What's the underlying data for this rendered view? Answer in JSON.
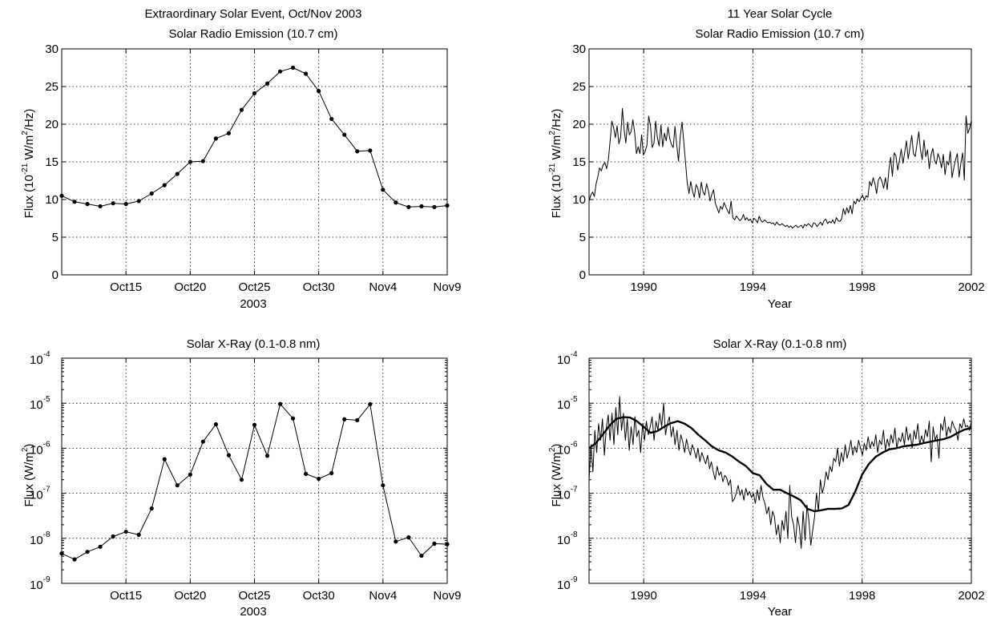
{
  "colors": {
    "background": "#ffffff",
    "ink": "#000000"
  },
  "chart_data": [
    {
      "id": "radio_event",
      "type": "line",
      "title": "Extraordinary Solar Event, Oct/Nov 2003",
      "subtitle": "Solar Radio Emission (10.7 cm)",
      "xlabel": "2003",
      "ylabel": "Flux (10^-21 W/m^2/Hz)",
      "ylabel_parts": {
        "pre": "Flux (10",
        "sup1": "-21",
        "mid": " W/m",
        "sup2": "2",
        "post": "/Hz)"
      },
      "x_tick_labels": [
        "Oct15",
        "Oct20",
        "Oct25",
        "Oct30",
        "Nov4",
        "Nov9"
      ],
      "y_tick_labels": [
        "0",
        "5",
        "10",
        "15",
        "20",
        "25",
        "30"
      ],
      "xlim": [
        10,
        40
      ],
      "ylim": [
        0,
        30
      ],
      "grid": true,
      "markers": true,
      "x": [
        10,
        11,
        12,
        13,
        14,
        15,
        16,
        17,
        18,
        19,
        20,
        21,
        22,
        23,
        24,
        25,
        26,
        27,
        28,
        29,
        30,
        31,
        32,
        33,
        34,
        35,
        36,
        37,
        38,
        39,
        40
      ],
      "values": [
        10.5,
        9.7,
        9.4,
        9.1,
        9.5,
        9.4,
        9.8,
        10.8,
        11.9,
        13.4,
        15.0,
        15.1,
        18.1,
        18.8,
        21.9,
        24.1,
        25.4,
        27.0,
        27.5,
        26.7,
        24.4,
        20.7,
        18.6,
        16.4,
        16.5,
        11.3,
        9.6,
        9.0,
        9.1,
        9.0,
        9.2
      ]
    },
    {
      "id": "radio_cycle",
      "type": "line",
      "title": "11 Year Solar Cycle",
      "subtitle": "Solar Radio Emission (10.7 cm)",
      "xlabel": "Year",
      "ylabel": "Flux (10^-21 W/m^2/Hz)",
      "ylabel_parts": {
        "pre": "Flux (10",
        "sup1": "-21",
        "mid": " W/m",
        "sup2": "2",
        "post": "/Hz)"
      },
      "x_tick_labels": [
        "1990",
        "1994",
        "1998",
        "2002"
      ],
      "y_tick_labels": [
        "0",
        "5",
        "10",
        "15",
        "20",
        "25",
        "30"
      ],
      "xlim": [
        1988,
        2002
      ],
      "ylim": [
        0,
        30
      ],
      "grid": true,
      "markers": false,
      "x_start": 1988.0,
      "x_step": 0.0833,
      "values": [
        9.8,
        10.6,
        11.0,
        10.4,
        12.1,
        13.0,
        14.2,
        13.8,
        14.6,
        14.9,
        14.1,
        15.3,
        17.8,
        20.4,
        19.6,
        18.2,
        19.8,
        17.4,
        18.3,
        22.1,
        19.2,
        17.5,
        20.3,
        18.6,
        19.0,
        20.6,
        18.9,
        16.1,
        17.0,
        16.1,
        18.6,
        15.9,
        16.4,
        17.2,
        21.1,
        19.8,
        16.9,
        17.5,
        20.4,
        18.2,
        17.1,
        19.9,
        17.0,
        18.8,
        17.8,
        19.6,
        18.1,
        17.3,
        16.9,
        19.7,
        17.2,
        15.1,
        18.4,
        20.3,
        17.6,
        15.0,
        12.2,
        10.8,
        12.4,
        11.1,
        10.3,
        12.0,
        11.5,
        10.2,
        12.3,
        11.0,
        10.6,
        12.1,
        11.2,
        9.8,
        10.7,
        11.3,
        9.5,
        8.9,
        8.2,
        9.1,
        8.7,
        9.6,
        9.0,
        8.5,
        8.1,
        9.8,
        7.6,
        7.3,
        7.8,
        7.5,
        7.2,
        7.4,
        8.0,
        7.3,
        7.6,
        7.2,
        7.4,
        6.9,
        7.5,
        7.3,
        6.9,
        7.8,
        7.2,
        7.0,
        7.3,
        7.1,
        6.9,
        7.0,
        6.8,
        6.9,
        6.6,
        7.0,
        6.7,
        6.6,
        6.8,
        6.6,
        6.4,
        6.6,
        6.3,
        6.5,
        6.2,
        6.4,
        6.6,
        6.3,
        6.4,
        6.6,
        6.2,
        6.7,
        6.5,
        6.8,
        6.6,
        6.3,
        6.9,
        6.8,
        6.4,
        6.7,
        7.0,
        6.6,
        7.2,
        7.4,
        6.8,
        7.1,
        6.9,
        7.3,
        6.8,
        7.6,
        7.2,
        7.1,
        7.4,
        8.8,
        8.0,
        8.9,
        8.2,
        9.2,
        8.1,
        9.8,
        9.4,
        10.1,
        9.7,
        10.2,
        10.6,
        9.9,
        10.5,
        10.3,
        12.4,
        11.8,
        12.9,
        12.1,
        10.8,
        12.6,
        13.0,
        12.4,
        11.5,
        12.9,
        11.3,
        14.0,
        15.6,
        13.1,
        16.2,
        15.8,
        13.9,
        15.2,
        16.7,
        14.8,
        16.3,
        17.8,
        15.4,
        16.9,
        18.5,
        16.1,
        15.7,
        17.4,
        19.0,
        16.6,
        15.3,
        17.9,
        15.7,
        16.6,
        14.1,
        15.9,
        16.8,
        15.2,
        14.7,
        16.1,
        15.4,
        14.2,
        16.0,
        13.3,
        15.1,
        14.6,
        16.4,
        12.9,
        14.2,
        15.3,
        16.1,
        13.0,
        14.8,
        16.2,
        12.6,
        21.1,
        18.8,
        19.4,
        20.5
      ]
    },
    {
      "id": "xray_event",
      "type": "line",
      "title": "Solar X-Ray (0.1-0.8 nm)",
      "xlabel": "2003",
      "ylabel": "Flux (W/m^2)",
      "ylabel_parts": {
        "pre": "Flux (W/m",
        "sup1": "2",
        "post": ")"
      },
      "x_tick_labels": [
        "Oct15",
        "Oct20",
        "Oct25",
        "Oct30",
        "Nov4",
        "Nov9"
      ],
      "y_tick_base": "10",
      "y_tick_exponents": [
        "-9",
        "-8",
        "-7",
        "-6",
        "-5",
        "-4"
      ],
      "xlim": [
        10,
        40
      ],
      "ylim": [
        1e-09,
        0.0001
      ],
      "yscale": "log",
      "grid": true,
      "markers": true,
      "x": [
        10,
        11,
        12,
        13,
        14,
        15,
        16,
        17,
        18,
        19,
        20,
        21,
        22,
        23,
        24,
        25,
        26,
        27,
        28,
        29,
        30,
        31,
        32,
        33,
        34,
        35,
        36,
        37,
        38,
        39,
        40
      ],
      "values": [
        4.6e-09,
        3.4e-09,
        5e-09,
        6.5e-09,
        1.1e-08,
        1.4e-08,
        1.2e-08,
        4.6e-08,
        5.7e-07,
        1.5e-07,
        2.6e-07,
        1.4e-06,
        3.4e-06,
        7e-07,
        2e-07,
        3.3e-06,
        6.8e-07,
        9.6e-06,
        4.6e-06,
        2.7e-07,
        2.1e-07,
        2.8e-07,
        4.4e-06,
        4.2e-06,
        9.5e-06,
        1.5e-07,
        8.5e-09,
        1.05e-08,
        4.1e-09,
        7.6e-09,
        7.4e-09
      ]
    },
    {
      "id": "xray_cycle",
      "type": "line",
      "title": "Solar X-Ray (0.1-0.8 nm)",
      "xlabel": "Year",
      "ylabel": "Flux (W/m^2)",
      "ylabel_parts": {
        "pre": "Flux (W/m",
        "sup1": "2",
        "post": ")"
      },
      "x_tick_labels": [
        "1990",
        "1994",
        "1998",
        "2002"
      ],
      "y_tick_base": "10",
      "y_tick_exponents": [
        "-9",
        "-8",
        "-7",
        "-6",
        "-5",
        "-4"
      ],
      "xlim": [
        1988,
        2002
      ],
      "ylim": [
        1e-09,
        0.0001
      ],
      "yscale": "log",
      "grid": true,
      "markers": false,
      "series": [
        {
          "style": "thin",
          "x_start": 1988.0,
          "x_step": 0.0833,
          "values": [
            2e-07,
            1.2e-06,
            3e-07,
            2.5e-06,
            8e-07,
            3.5e-06,
            1.5e-06,
            4.5e-06,
            7e-07,
            2.8e-06,
            5.5e-06,
            1.5e-06,
            6e-06,
            1.2e-06,
            8e-06,
            2e-06,
            1.4e-05,
            2.5e-06,
            6e-06,
            1.5e-06,
            4.5e-06,
            9e-07,
            3e-06,
            1.2e-06,
            5e-06,
            1.8e-06,
            2.5e-06,
            8e-07,
            3.5e-06,
            1.5e-06,
            4e-06,
            2e-06,
            3e-06,
            5e-06,
            1.5e-06,
            4e-06,
            2.5e-06,
            6e-06,
            3e-06,
            1e-05,
            2e-06,
            3.5e-06,
            5e-06,
            1.8e-06,
            3e-06,
            1.2e-06,
            2.5e-06,
            9e-07,
            2e-06,
            1.4e-06,
            8e-07,
            1.6e-06,
            1e-06,
            7e-07,
            1.2e-06,
            9e-07,
            6e-07,
            1e-06,
            5e-07,
            8e-07,
            6e-07,
            4.5e-07,
            7e-07,
            3.5e-07,
            5e-07,
            3e-07,
            2e-07,
            4e-07,
            2.5e-07,
            3e-07,
            1.8e-07,
            2.5e-07,
            2.2e-07,
            1.5e-07,
            2e-07,
            6.5e-08,
            7.5e-08,
            1e-07,
            1.5e-07,
            9e-08,
            1.2e-07,
            7e-08,
            1.3e-07,
            9e-08,
            1.1e-07,
            8e-08,
            1e-07,
            6e-08,
            1.2e-07,
            7e-08,
            1.5e-07,
            8e-08,
            6e-08,
            3.5e-08,
            5e-08,
            2e-08,
            4e-08,
            3e-08,
            1.2e-08,
            2e-08,
            8e-09,
            2.5e-08,
            1.5e-08,
            4e-08,
            1e-08,
            1.5e-07,
            3e-08,
            2e-08,
            8e-09,
            3e-08,
            1.8e-08,
            6e-09,
            4e-08,
            9e-09,
            5.5e-08,
            2.5e-08,
            7e-09,
            1.5e-08,
            3e-08,
            1e-07,
            4e-08,
            2e-07,
            1e-07,
            1.5e-07,
            3e-07,
            2e-07,
            4e-07,
            3e-07,
            6e-07,
            5e-07,
            1e-06,
            4e-07,
            8e-07,
            5e-07,
            1.2e-06,
            6e-07,
            9e-07,
            1.5e-06,
            7e-07,
            1.1e-06,
            8e-07,
            1.5e-06,
            1e-06,
            7e-07,
            1.3e-06,
            9e-07,
            1.8e-06,
            1e-06,
            1.4e-06,
            1.1e-06,
            2e-06,
            8e-07,
            1.5e-06,
            1.2e-06,
            2.5e-06,
            9e-07,
            1.6e-06,
            1.1e-06,
            2e-06,
            1.3e-06,
            2.8e-06,
            1e-06,
            1.7e-06,
            1.4e-06,
            2.2e-06,
            1.2e-06,
            3e-06,
            1.5e-06,
            2.1e-06,
            1e-06,
            2.5e-06,
            1.6e-06,
            3.5e-06,
            1.2e-06,
            1.9e-06,
            1.3e-06,
            2.6e-06,
            1.8e-06,
            4e-06,
            5e-07,
            3e-06,
            1.5e-06,
            2e-06,
            6e-07,
            3.5e-06,
            2.5e-06,
            5e-06,
            1.8e-06,
            3e-06,
            2.2e-06,
            4e-06,
            3e-06,
            2.5e-06,
            1.5e-06,
            3.5e-06,
            2.8e-06,
            4.5e-06,
            3e-06,
            3.2e-06,
            2.5e-06,
            4e-06
          ]
        },
        {
          "style": "bold",
          "x": [
            1988.0,
            1988.25,
            1988.5,
            1988.75,
            1989.0,
            1989.25,
            1989.5,
            1989.75,
            1990.0,
            1990.25,
            1990.5,
            1990.75,
            1991.0,
            1991.25,
            1991.5,
            1991.75,
            1992.0,
            1992.25,
            1992.5,
            1992.75,
            1993.0,
            1993.25,
            1993.5,
            1993.75,
            1994.0,
            1994.25,
            1994.5,
            1994.75,
            1995.0,
            1995.25,
            1995.5,
            1995.75,
            1996.0,
            1996.25,
            1996.5,
            1996.75,
            1997.0,
            1997.25,
            1997.5,
            1997.75,
            1998.0,
            1998.25,
            1998.5,
            1998.75,
            1999.0,
            1999.25,
            1999.5,
            1999.75,
            2000.0,
            2000.25,
            2000.5,
            2000.75,
            2001.0,
            2001.25,
            2001.5,
            2001.75,
            2002.0
          ],
          "values": [
            1e-06,
            1.3e-06,
            2e-06,
            3.2e-06,
            4.5e-06,
            4.9e-06,
            4.8e-06,
            4e-06,
            3e-06,
            2.2e-06,
            2.4e-06,
            3e-06,
            3.6e-06,
            4e-06,
            3.5e-06,
            2.8e-06,
            2e-06,
            1.5e-06,
            1.1e-06,
            9e-07,
            8e-07,
            6.5e-07,
            5e-07,
            4e-07,
            2.8e-07,
            2.5e-07,
            1.6e-07,
            1.2e-07,
            1.2e-07,
            1e-07,
            8.5e-08,
            7e-08,
            4.5e-08,
            4e-08,
            4.2e-08,
            4.5e-08,
            4.5e-08,
            4.6e-08,
            5.5e-08,
            1.1e-07,
            2.6e-07,
            4.5e-07,
            6.5e-07,
            8e-07,
            9.5e-07,
            1e-06,
            1.1e-06,
            1.15e-06,
            1.2e-06,
            1.3e-06,
            1.4e-06,
            1.5e-06,
            1.6e-06,
            1.8e-06,
            2.2e-06,
            2.6e-06,
            2.8e-06
          ]
        }
      ]
    }
  ]
}
